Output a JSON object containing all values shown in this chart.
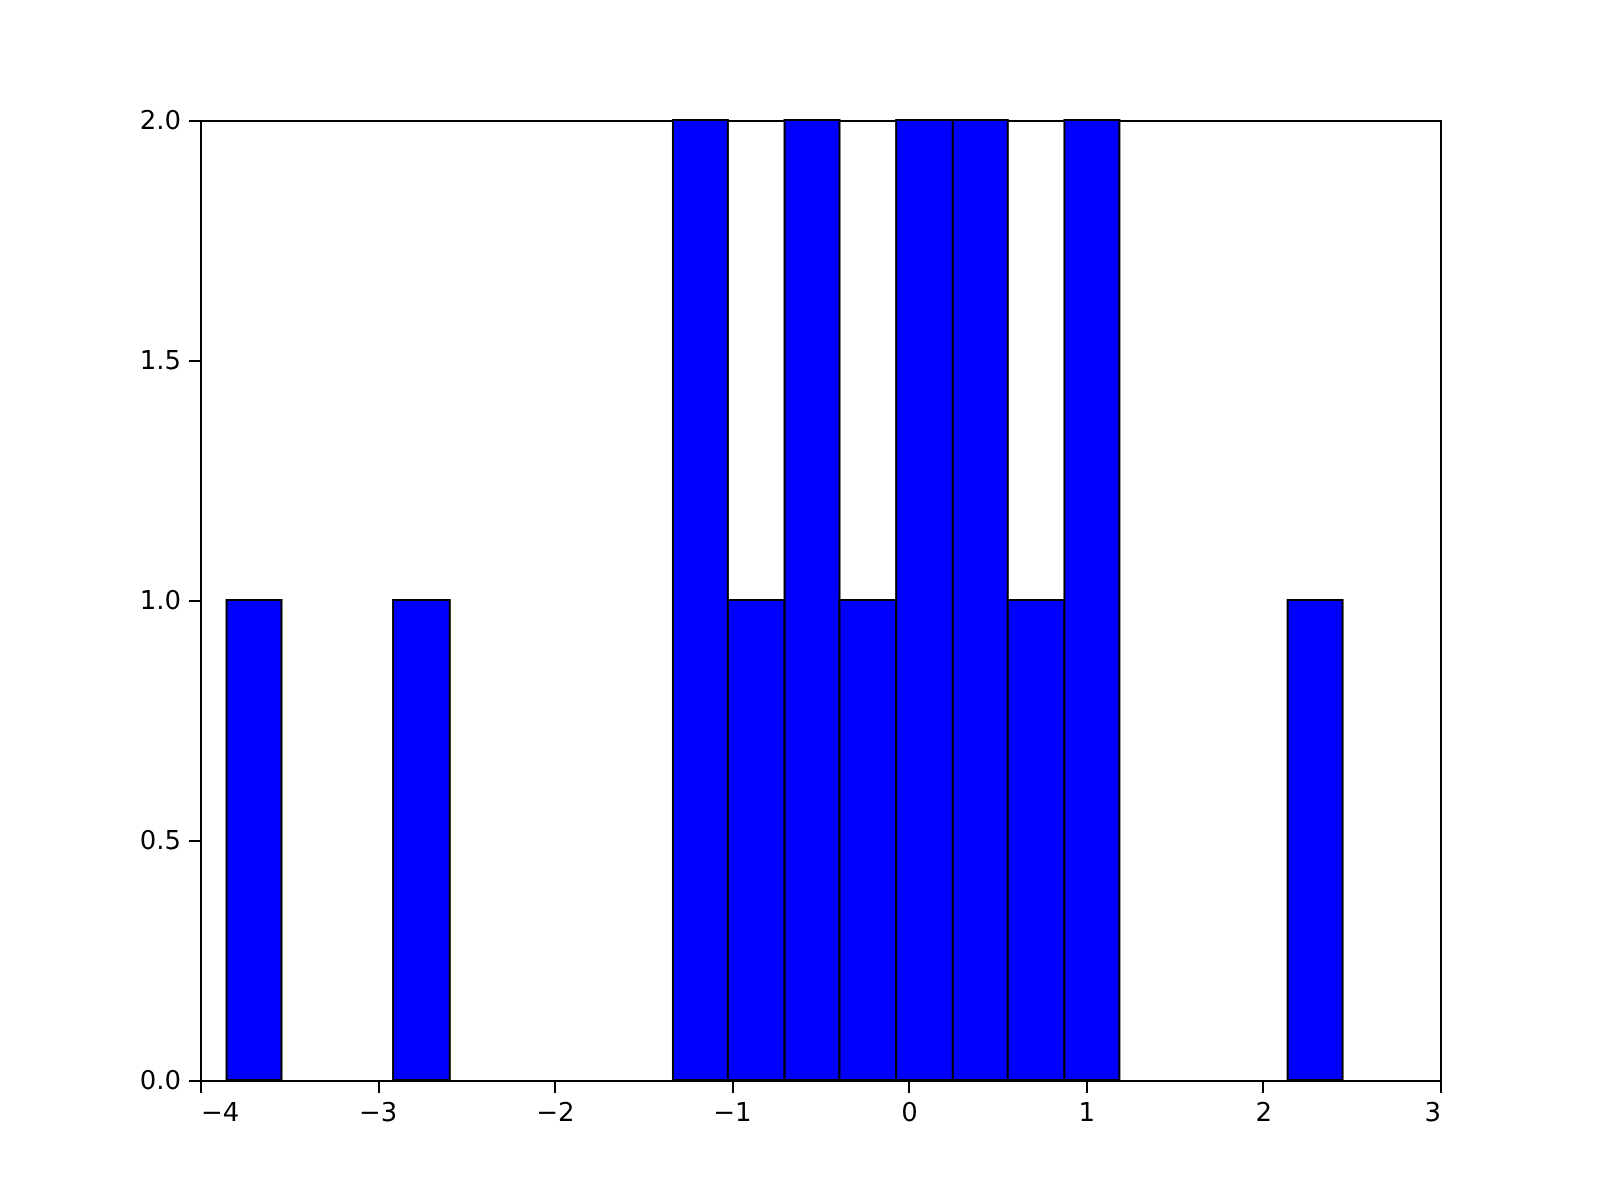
{
  "chart_data": {
    "type": "histogram",
    "bins": [
      -3.85,
      -3.54,
      -2.91,
      -2.59,
      -1.33,
      -1.02,
      -0.7,
      -0.39,
      -0.07,
      0.25,
      0.56,
      0.88,
      1.19,
      2.14,
      2.45
    ],
    "values": [
      1,
      0,
      1,
      0,
      2,
      1,
      2,
      1,
      2,
      2,
      1,
      2,
      0,
      1
    ],
    "color": "#0000ff",
    "xlim": [
      -4,
      3
    ],
    "xticks": [
      {
        "value": -4,
        "label": "−4"
      },
      {
        "value": -3,
        "label": "−3"
      },
      {
        "value": -2,
        "label": "−2"
      },
      {
        "value": -1,
        "label": "−1"
      },
      0,
      1,
      2,
      3
    ],
    "ylim": [
      0,
      2
    ],
    "yticks": [
      {
        "value": 0,
        "label": "0.0"
      },
      {
        "value": 0.5,
        "label": "0.5"
      },
      {
        "value": 1,
        "label": "1.0"
      },
      {
        "value": 1.5,
        "label": "1.5"
      },
      {
        "value": 2,
        "label": "2.0"
      }
    ],
    "grid": false
  }
}
